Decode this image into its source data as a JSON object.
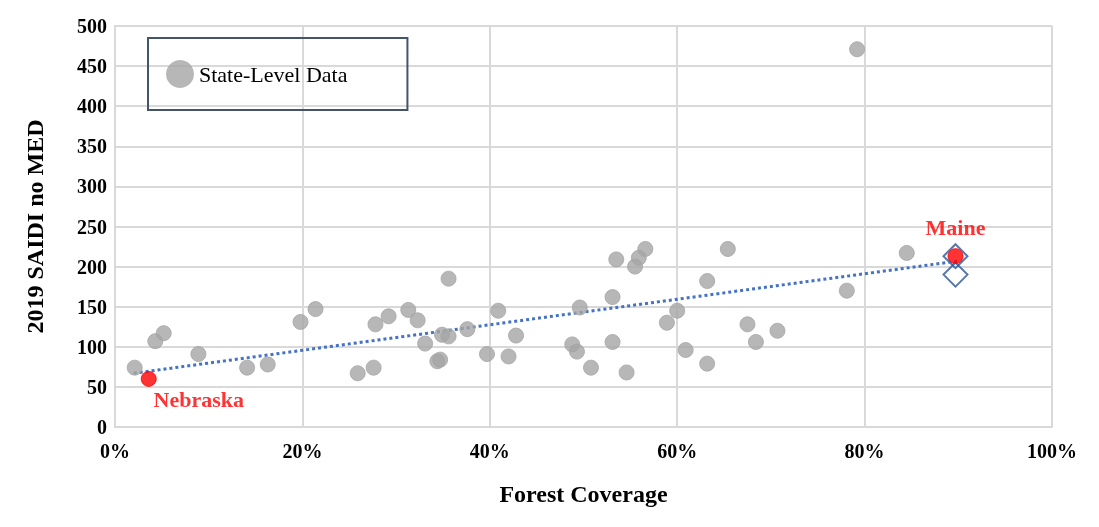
{
  "chart_data": {
    "type": "scatter",
    "xlabel": "Forest Coverage",
    "ylabel": "2019 SAIDI no MED",
    "xlim": [
      0,
      100
    ],
    "xticks": [
      {
        "value": 0,
        "label": "0%"
      },
      {
        "value": 20,
        "label": "20%"
      },
      {
        "value": 40,
        "label": "40%"
      },
      {
        "value": 60,
        "label": "60%"
      },
      {
        "value": 80,
        "label": "80%"
      },
      {
        "value": 100,
        "label": "100%"
      }
    ],
    "ylim": [
      0,
      500
    ],
    "yticks": [
      0,
      50,
      100,
      150,
      200,
      250,
      300,
      350,
      400,
      450,
      500
    ],
    "grid": true,
    "legend": "top left",
    "series": [
      {
        "name": "State-Level Data",
        "color": "#a5a5a5",
        "marker": "circle",
        "x": [
          2.1,
          4.3,
          5.2,
          8.9,
          14.1,
          16.3,
          19.8,
          21.4,
          25.9,
          27.6,
          27.8,
          29.2,
          31.3,
          32.3,
          33.1,
          34.4,
          34.7,
          34.9,
          35.6,
          35.6,
          37.6,
          39.7,
          40.9,
          42.0,
          42.8,
          48.8,
          49.3,
          49.6,
          50.8,
          53.1,
          53.1,
          53.5,
          54.6,
          55.5,
          55.9,
          56.6,
          58.9,
          60.0,
          60.9,
          63.2,
          63.2,
          65.4,
          67.5,
          68.4,
          70.7,
          78.1,
          79.2,
          84.5,
          3.6,
          89.7
        ],
        "values": [
          74,
          107,
          117,
          91,
          74,
          78,
          131,
          147,
          67,
          74,
          128,
          138,
          146,
          133,
          104,
          82,
          84,
          115,
          113,
          185,
          122,
          91,
          145,
          88,
          114,
          103,
          94,
          149,
          74,
          106,
          162,
          209,
          68,
          200,
          211,
          222,
          130,
          145,
          96,
          182,
          79,
          222,
          128,
          106,
          120,
          170,
          471,
          217,
          60,
          213
        ],
        "colors": [
          "#a5a5a5",
          "#a5a5a5",
          "#a5a5a5",
          "#a5a5a5",
          "#a5a5a5",
          "#a5a5a5",
          "#a5a5a5",
          "#a5a5a5",
          "#a5a5a5",
          "#a5a5a5",
          "#a5a5a5",
          "#a5a5a5",
          "#a5a5a5",
          "#a5a5a5",
          "#a5a5a5",
          "#a5a5a5",
          "#a5a5a5",
          "#a5a5a5",
          "#a5a5a5",
          "#a5a5a5",
          "#a5a5a5",
          "#a5a5a5",
          "#a5a5a5",
          "#a5a5a5",
          "#a5a5a5",
          "#a5a5a5",
          "#a5a5a5",
          "#a5a5a5",
          "#a5a5a5",
          "#a5a5a5",
          "#a5a5a5",
          "#a5a5a5",
          "#a5a5a5",
          "#a5a5a5",
          "#a5a5a5",
          "#a5a5a5",
          "#a5a5a5",
          "#a5a5a5",
          "#a5a5a5",
          "#a5a5a5",
          "#a5a5a5",
          "#a5a5a5",
          "#a5a5a5",
          "#a5a5a5",
          "#a5a5a5",
          "#a5a5a5",
          "#a5a5a5",
          "#a5a5a5",
          "#ff0000",
          "#ff0000"
        ]
      },
      {
        "type": "line",
        "color": "#4472c4",
        "marker": "none",
        "line_style": "dotted",
        "x": [
          2,
          90
        ],
        "values": [
          67,
          207
        ]
      },
      {
        "color": "#2f5597",
        "marker": "diamond",
        "x": [
          89.7,
          89.7
        ],
        "values": [
          213,
          190
        ]
      }
    ],
    "annotations": [
      {
        "text": "Nebraska",
        "x": 3.6,
        "y": 60
      },
      {
        "text": "Maine",
        "x": 89.7,
        "y": 213
      }
    ]
  }
}
